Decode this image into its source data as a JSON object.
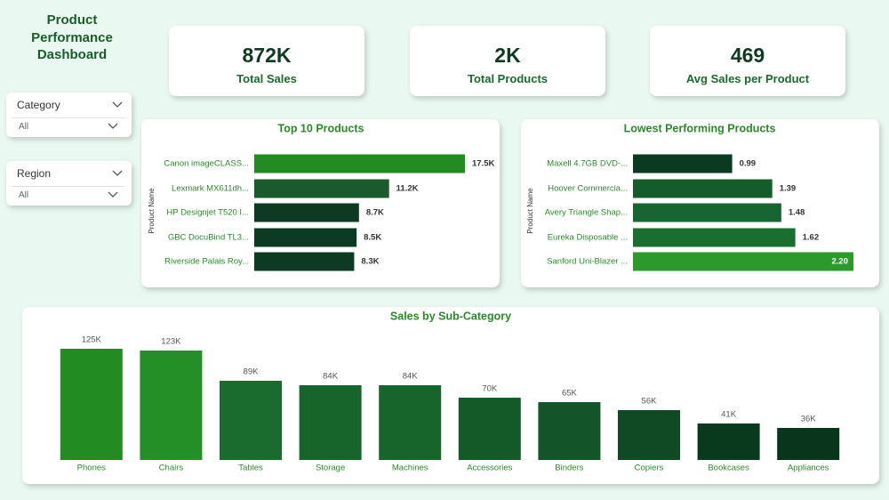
{
  "title": "Product Performance Dashboard",
  "cards": [
    {
      "value": "872K",
      "label": "Total Sales"
    },
    {
      "value": "2K",
      "label": "Total Products"
    },
    {
      "value": "469",
      "label": "Avg Sales per Product"
    }
  ],
  "filters": [
    {
      "label": "Category",
      "selection": "All"
    },
    {
      "label": "Region",
      "selection": "All"
    }
  ],
  "chart_data": [
    {
      "type": "bar",
      "orientation": "horizontal",
      "title": "Top 10 Products",
      "y_label": "Product Name",
      "categories": [
        "Canon imageCLASS...",
        "Lexmark MX611dh...",
        "HP Designjet T520 I...",
        "GBC DocuBind TL3...",
        "Riverside Palais Roy..."
      ],
      "values": [
        17500,
        11200,
        8700,
        8500,
        8300
      ],
      "value_labels": [
        "17.5K",
        "11.2K",
        "8.7K",
        "8.5K",
        "8.3K"
      ],
      "colors": [
        "#228b22",
        "#1a5a2c",
        "#0c3a22",
        "#0c3a22",
        "#0c3a22"
      ]
    },
    {
      "type": "bar",
      "orientation": "horizontal",
      "title": "Lowest Performing Products",
      "y_label": "Product Name",
      "categories": [
        "Maxell 4.7GB DVD-...",
        "Hoover Commercia...",
        "Avery Triangle Shap...",
        "Eureka Disposable ...",
        "Sanford Uni-Blazer ..."
      ],
      "values": [
        0.99,
        1.39,
        1.48,
        1.62,
        2.2
      ],
      "value_labels": [
        "0.99",
        "1.39",
        "1.48",
        "1.62",
        "2.20"
      ],
      "colors": [
        "#0b3a22",
        "#155c2c",
        "#176530",
        "#1a6e30",
        "#2a9a2a"
      ]
    },
    {
      "type": "bar",
      "orientation": "vertical",
      "title": "Sales by Sub-Category",
      "categories": [
        "Phones",
        "Chairs",
        "Tables",
        "Storage",
        "Machines",
        "Accessories",
        "Binders",
        "Copiers",
        "Bookcases",
        "Appliances"
      ],
      "values": [
        125000,
        123000,
        89000,
        84000,
        84000,
        70000,
        65000,
        56000,
        41000,
        36000
      ],
      "value_labels": [
        "125K",
        "123K",
        "89K",
        "84K",
        "84K",
        "70K",
        "65K",
        "56K",
        "41K",
        "36K"
      ],
      "colors": [
        "#228b22",
        "#248f26",
        "#1a6b2e",
        "#18652c",
        "#18652c",
        "#145a28",
        "#135528",
        "#0f4a24",
        "#0a3a1e",
        "#0a351d"
      ]
    }
  ]
}
